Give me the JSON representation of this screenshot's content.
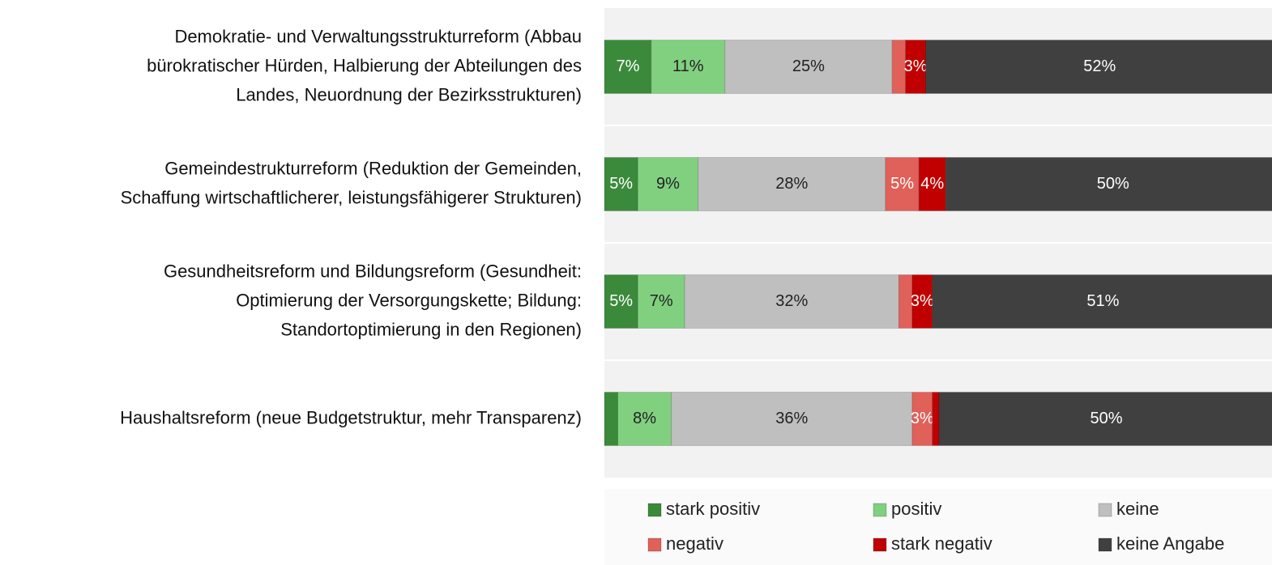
{
  "chart_data": {
    "type": "stacked_bar_horizontal",
    "categories": [
      [
        "Demokratie- und Verwaltungsstrukturreform (Abbau",
        "bürokratischer Hürden, Halbierung der Abteilungen des",
        "Landes, Neuordnung der Bezirksstrukturen)"
      ],
      [
        "Gemeindestrukturreform (Reduktion der Gemeinden,",
        "Schaffung wirtschaftlicherer, leistungsfähigerer Strukturen)"
      ],
      [
        "Gesundheitsreform und Bildungsreform (Gesundheit:",
        "Optimierung der Versorgungskette; Bildung:",
        "Standortoptimierung in den Regionen)"
      ],
      [
        "Haushaltsreform (neue Budgetstruktur, mehr Transparenz)"
      ]
    ],
    "series": [
      {
        "name": "stark positiv",
        "color": "#3b8a3b",
        "values": [
          7,
          5,
          5,
          2
        ],
        "value_labels": [
          "7%",
          "5%",
          "5%",
          null
        ]
      },
      {
        "name": "positiv",
        "color": "#80d080",
        "values": [
          11,
          9,
          7,
          8
        ],
        "value_labels": [
          "11%",
          "9%",
          "7%",
          "8%"
        ]
      },
      {
        "name": "keine",
        "color": "#bfbfbf",
        "values": [
          25,
          28,
          32,
          36
        ],
        "value_labels": [
          "25%",
          "28%",
          "32%",
          "36%"
        ]
      },
      {
        "name": "negativ",
        "color": "#e0605a",
        "values": [
          2,
          5,
          2,
          3
        ],
        "value_labels": [
          null,
          "5%",
          null,
          "3%"
        ]
      },
      {
        "name": "stark negativ",
        "color": "#c00000",
        "values": [
          3,
          4,
          3,
          1
        ],
        "value_labels": [
          "3%",
          "4%",
          "3%",
          null
        ]
      },
      {
        "name": "keine Angabe",
        "color": "#404040",
        "values": [
          52,
          50,
          51,
          50
        ],
        "value_labels": [
          "52%",
          "50%",
          "51%",
          "50%"
        ]
      }
    ],
    "xlim": [
      0,
      100
    ],
    "legend": "bottom"
  }
}
